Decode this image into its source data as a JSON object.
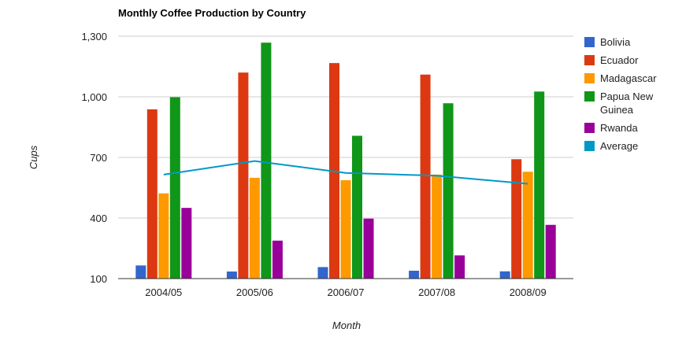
{
  "chart_data": {
    "type": "bar",
    "title": "Monthly Coffee Production by Country",
    "xlabel": "Month",
    "ylabel": "Cups",
    "categories": [
      "2004/05",
      "2005/06",
      "2006/07",
      "2007/08",
      "2008/09"
    ],
    "ylim": [
      100,
      1300
    ],
    "yticks": [
      100,
      400,
      700,
      1000,
      1300
    ],
    "ytick_labels": [
      "100",
      "400",
      "700",
      "1,000",
      "1,300"
    ],
    "grid": true,
    "legend_position": "right",
    "series": [
      {
        "name": "Bolivia",
        "type": "bar",
        "color": "#3366cc",
        "values": [
          165,
          135,
          157,
          139,
          136
        ]
      },
      {
        "name": "Ecuador",
        "type": "bar",
        "color": "#dc3912",
        "values": [
          938,
          1120,
          1167,
          1110,
          691
        ]
      },
      {
        "name": "Madagascar",
        "type": "bar",
        "color": "#ff9900",
        "values": [
          522,
          599,
          587,
          615,
          629
        ]
      },
      {
        "name": "Papua New Guinea",
        "type": "bar",
        "color": "#109618",
        "values": [
          998,
          1268,
          807,
          968,
          1026
        ]
      },
      {
        "name": "Rwanda",
        "type": "bar",
        "color": "#990099",
        "values": [
          450,
          288,
          397,
          215,
          366
        ]
      },
      {
        "name": "Average",
        "type": "line",
        "color": "#0099c6",
        "values": [
          614.6,
          682,
          623,
          609.4,
          569.6
        ]
      }
    ],
    "legend_lines": [
      [
        "Bolivia"
      ],
      [
        "Ecuador"
      ],
      [
        "Madagascar"
      ],
      [
        "Papua New",
        "Guinea"
      ],
      [
        "Rwanda"
      ],
      [
        "Average"
      ]
    ]
  }
}
